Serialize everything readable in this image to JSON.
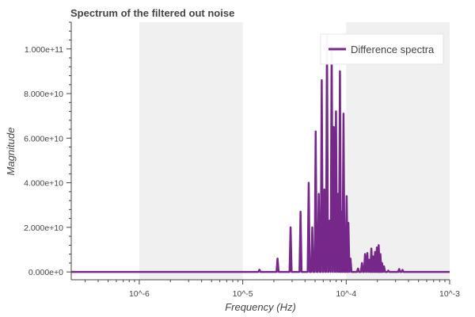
{
  "chart_data": {
    "type": "line",
    "title": "Spectrum of the filtered out noise",
    "xlabel": "Frequency (Hz)",
    "ylabel": "Magnitude",
    "x_scale": "log",
    "xlim": [
      2.2e-07,
      0.001
    ],
    "ylim": [
      -3500000000.0,
      112000000000.0
    ],
    "x_ticks": [
      {
        "value": 1e-06,
        "label": "10^-6"
      },
      {
        "value": 1e-05,
        "label": "10^-5"
      },
      {
        "value": 0.0001,
        "label": "10^-4"
      },
      {
        "value": 0.001,
        "label": "10^-3"
      }
    ],
    "y_ticks": [
      {
        "value": 0,
        "label": "0.000e+0"
      },
      {
        "value": 20000000000.0,
        "label": "2.000e+10"
      },
      {
        "value": 40000000000.0,
        "label": "4.000e+10"
      },
      {
        "value": 60000000000.0,
        "label": "6.000e+10"
      },
      {
        "value": 80000000000.0,
        "label": "8.000e+10"
      },
      {
        "value": 100000000000.0,
        "label": "1.000e+11"
      }
    ],
    "shaded_bands": [
      {
        "x0": 1e-06,
        "x1": 1e-05
      },
      {
        "x0": 0.0001,
        "x1": 0.001
      }
    ],
    "legend": {
      "position": "top-right"
    },
    "series": [
      {
        "name": "Difference spectra",
        "color": "#76288a",
        "peaks": [
          {
            "x": 1.45e-05,
            "y": 1000000000.0
          },
          {
            "x": 2.17e-05,
            "y": 6000000000.0
          },
          {
            "x": 2.9e-05,
            "y": 20000000000.0
          },
          {
            "x": 3.62e-05,
            "y": 27000000000.0
          },
          {
            "x": 4.34e-05,
            "y": 40000000000.0
          },
          {
            "x": 4.7e-05,
            "y": 20000000000.0
          },
          {
            "x": 5.07e-05,
            "y": 63000000000.0
          },
          {
            "x": 5.43e-05,
            "y": 35000000000.0
          },
          {
            "x": 5.8e-05,
            "y": 86000000000.0
          },
          {
            "x": 6.15e-05,
            "y": 37000000000.0
          },
          {
            "x": 6.52e-05,
            "y": 105500000000.0
          },
          {
            "x": 6.9e-05,
            "y": 23000000000.0
          },
          {
            "x": 7.24e-05,
            "y": 102000000000.0
          },
          {
            "x": 7.6e-05,
            "y": 65000000000.0
          },
          {
            "x": 7.97e-05,
            "y": 72000000000.0
          },
          {
            "x": 8.33e-05,
            "y": 35000000000.0
          },
          {
            "x": 8.7e-05,
            "y": 90000000000.0
          },
          {
            "x": 9.05e-05,
            "y": 27000000000.0
          },
          {
            "x": 9.42e-05,
            "y": 71000000000.0
          },
          {
            "x": 0.000101,
            "y": 34000000000.0
          },
          {
            "x": 0.000105,
            "y": 22000000000.0
          },
          {
            "x": 0.00011,
            "y": 6000000000.0
          },
          {
            "x": 0.00013,
            "y": 1500000000.0
          },
          {
            "x": 0.000142,
            "y": 4000000000.0
          },
          {
            "x": 0.000152,
            "y": 8000000000.0
          },
          {
            "x": 0.00016,
            "y": 8500000000.0
          },
          {
            "x": 0.000168,
            "y": 5500000000.0
          },
          {
            "x": 0.000175,
            "y": 10500000000.0
          },
          {
            "x": 0.000182,
            "y": 7000000000.0
          },
          {
            "x": 0.00019,
            "y": 9000000000.0
          },
          {
            "x": 0.000198,
            "y": 11000000000.0
          },
          {
            "x": 0.000206,
            "y": 12000000000.0
          },
          {
            "x": 0.000214,
            "y": 8000000000.0
          },
          {
            "x": 0.000222,
            "y": 4000000000.0
          },
          {
            "x": 0.000232,
            "y": 2500000000.0
          },
          {
            "x": 0.000255,
            "y": 600000000.0
          },
          {
            "x": 0.000325,
            "y": 1300000000.0
          },
          {
            "x": 0.00035,
            "y": 900000000.0
          }
        ]
      }
    ]
  }
}
